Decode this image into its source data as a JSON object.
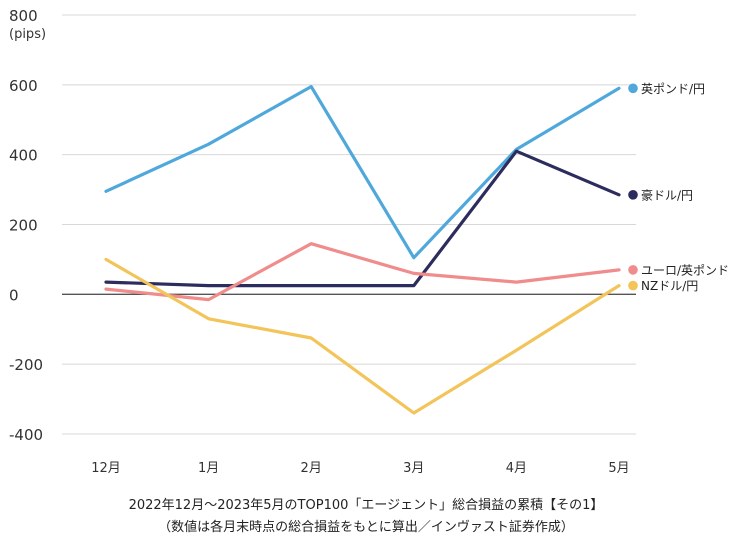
{
  "chart_data": {
    "type": "line",
    "y_unit": "(pips)",
    "categories": [
      "12月",
      "1月",
      "2月",
      "3月",
      "4月",
      "5月"
    ],
    "y_ticks": [
      800,
      600,
      400,
      200,
      0,
      -200,
      -400
    ],
    "y_tick_labels": [
      "800",
      "600",
      "400",
      "200",
      "0",
      "-200",
      "-400"
    ],
    "ylim": [
      -400,
      800
    ],
    "grid": true,
    "zero_line": true,
    "series": [
      {
        "name": "英ポンド/円",
        "color": "#4fa8dc",
        "values": [
          295,
          430,
          595,
          105,
          415,
          590
        ]
      },
      {
        "name": "豪ドル/円",
        "color": "#2d2c5e",
        "values": [
          35,
          25,
          25,
          25,
          410,
          285
        ]
      },
      {
        "name": "ユーロ/英ポンド",
        "color": "#f08c8c",
        "values": [
          15,
          -15,
          145,
          60,
          35,
          70
        ]
      },
      {
        "name": "NZドル/円",
        "color": "#f2c45a",
        "values": [
          100,
          -70,
          -125,
          -340,
          -160,
          25
        ]
      }
    ],
    "title_line1": "2022年12月～2023年5月のTOP100「エージェント」総合損益の累積【その1】",
    "title_line2": "（数値は各月末時点の総合損益をもとに算出／インヴァスト証券作成）"
  }
}
